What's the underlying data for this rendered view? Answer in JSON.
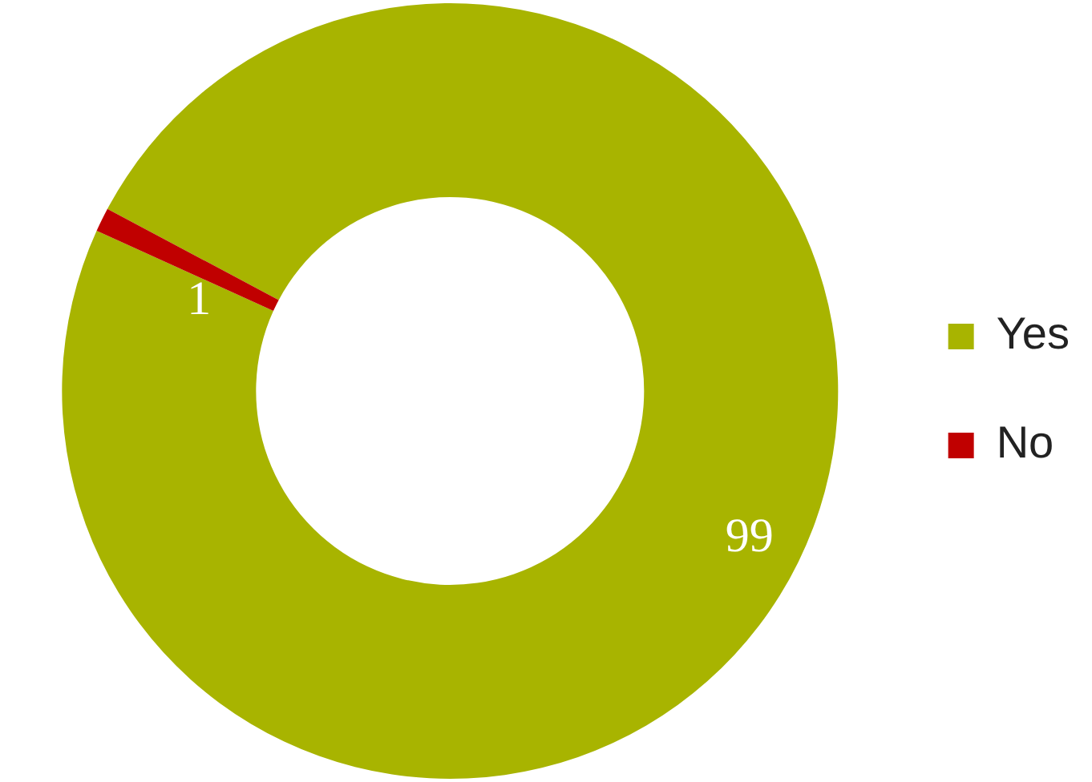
{
  "chart_data": {
    "type": "donut",
    "categories": [
      "Yes",
      "No"
    ],
    "values": [
      99,
      1
    ],
    "colors": [
      "#a8b400",
      "#c00000"
    ],
    "data_labels": true,
    "legend": "right"
  }
}
